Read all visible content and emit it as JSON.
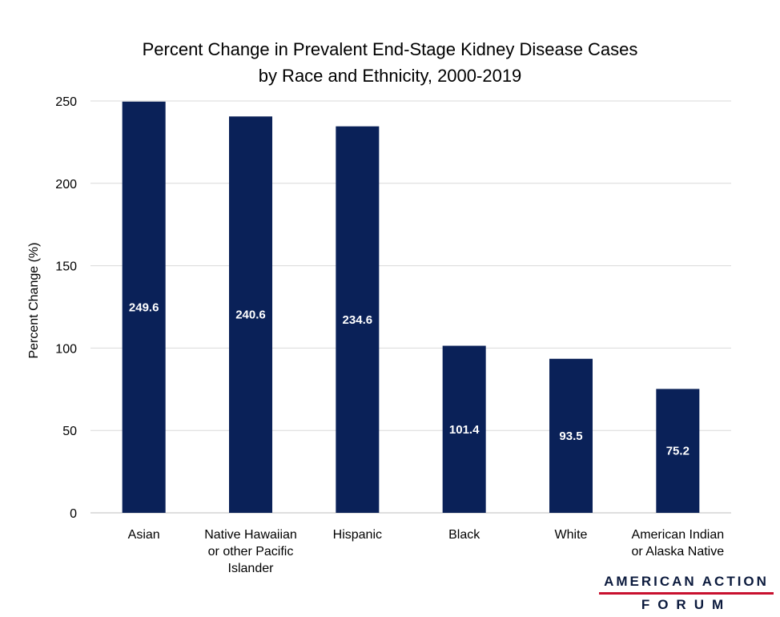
{
  "chart_data": {
    "type": "bar",
    "title": [
      "Percent Change in Prevalent End-Stage Kidney Disease Cases",
      "by Race and Ethnicity, 2000-2019"
    ],
    "ylabel": "Percent Change (%)",
    "xlabel": "",
    "ylim": [
      0,
      250
    ],
    "yticks": [
      0,
      50,
      100,
      150,
      200,
      250
    ],
    "grid": true,
    "legend": "none",
    "bar_color": "#0a2158",
    "categories": [
      [
        "Asian"
      ],
      [
        "Native Hawaiian",
        "or other Pacific",
        "Islander"
      ],
      [
        "Hispanic"
      ],
      [
        "Black"
      ],
      [
        "White"
      ],
      [
        "American Indian",
        "or Alaska Native"
      ]
    ],
    "values": [
      249.6,
      240.6,
      234.6,
      101.4,
      93.5,
      75.2
    ],
    "data_labels": [
      "249.6",
      "240.6",
      "234.6",
      "101.4",
      "93.5",
      "75.2"
    ]
  },
  "logo": {
    "line1": "AMERICAN ACTION",
    "line2": "FORUM",
    "accent_color": "#c8102e",
    "text_color": "#0b1a3d"
  }
}
